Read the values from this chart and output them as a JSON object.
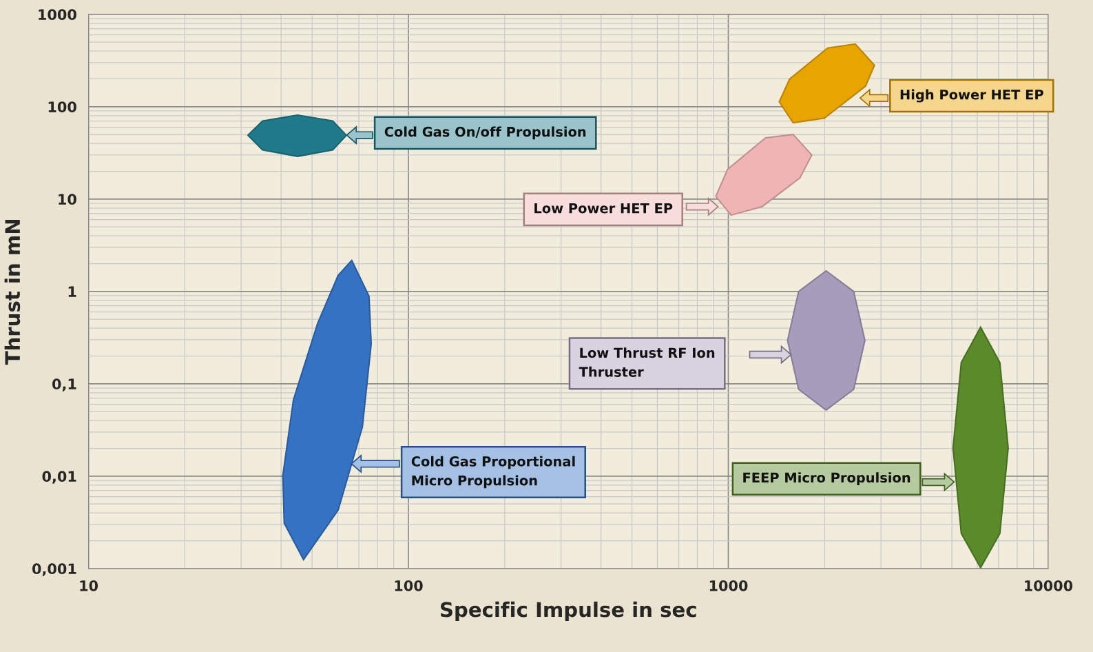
{
  "chart_data": {
    "type": "area",
    "xlabel": "Specific Impulse in sec",
    "ylabel": "Thrust in mN",
    "log": "xy",
    "grid": true,
    "legend": false,
    "xlim": [
      10,
      10000
    ],
    "xticks": [
      10,
      100,
      1000,
      10000
    ],
    "ylim": [
      0.001,
      1000
    ],
    "yticks": [
      {
        "value": 0.001,
        "label": "0,001"
      },
      {
        "value": 0.01,
        "label": "0,01"
      },
      {
        "value": 0.1,
        "label": "0,1"
      },
      1,
      10,
      100,
      1000
    ],
    "series": [
      {
        "color": "#1f7a8c",
        "x": [
          64,
          58,
          45,
          35,
          31.5,
          35,
          45,
          58
        ],
        "values": [
          49,
          70,
          81,
          70,
          49,
          34,
          29,
          34
        ]
      },
      {
        "color": "#e8a400",
        "x": [
          2864,
          2494,
          2044,
          1555,
          1443,
          1595,
          1995,
          2685
        ],
        "values": [
          281,
          478,
          431,
          199,
          113,
          67,
          75,
          167
        ]
      },
      {
        "color": "#f0b4b4",
        "x": [
          1824,
          1595,
          1307,
          995,
          914,
          1020,
          1276,
          1675
        ],
        "values": [
          30,
          50,
          46,
          21,
          10.7,
          6.7,
          8.3,
          17
        ]
      },
      {
        "color": "#a89cbc",
        "x": [
          2673,
          2466,
          2022,
          1659,
          1532,
          1659,
          2022,
          2466
        ],
        "values": [
          0.295,
          1.0,
          1.67,
          1.0,
          0.295,
          0.087,
          0.052,
          0.087
        ]
      },
      {
        "color": "#5a8a2a",
        "x": [
          7499,
          7063,
          6147,
          5349,
          5042,
          5349,
          6147,
          7063
        ],
        "values": [
          0.0202,
          0.17,
          0.41,
          0.17,
          0.0202,
          0.0024,
          0.00102,
          0.0024
        ]
      },
      {
        "color": "#3572c4",
        "x": [
          66.5,
          75.3,
          76.5,
          71.8,
          60.3,
          47,
          40.9,
          40.5,
          43.7,
          52,
          60.3
        ],
        "values": [
          2.17,
          0.89,
          0.27,
          0.034,
          0.0043,
          0.00125,
          0.0031,
          0.0102,
          0.067,
          0.45,
          1.49
        ]
      }
    ],
    "annotations": [
      "Cold Gas On/off Propulsion",
      "High Power HET EP",
      "Low Power HET EP",
      "Low Thrust RF Ion\nThruster",
      "FEEP Micro Propulsion",
      "Cold Gas Proportional\nMicro Propulsion"
    ]
  }
}
